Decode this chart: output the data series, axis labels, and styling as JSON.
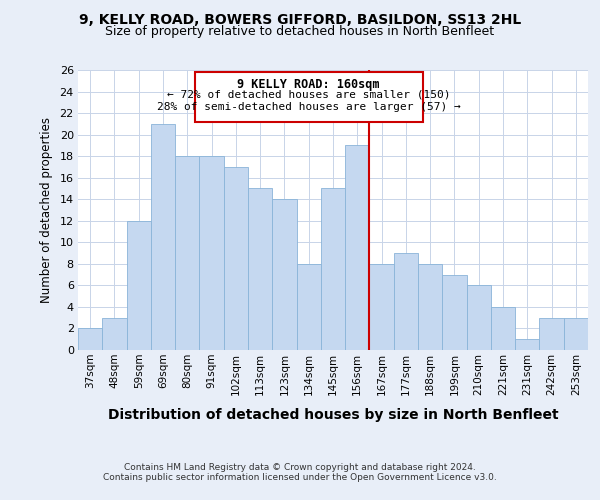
{
  "title1": "9, KELLY ROAD, BOWERS GIFFORD, BASILDON, SS13 2HL",
  "title2": "Size of property relative to detached houses in North Benfleet",
  "xlabel": "Distribution of detached houses by size in North Benfleet",
  "ylabel": "Number of detached properties",
  "categories": [
    "37sqm",
    "48sqm",
    "59sqm",
    "69sqm",
    "80sqm",
    "91sqm",
    "102sqm",
    "113sqm",
    "123sqm",
    "134sqm",
    "145sqm",
    "156sqm",
    "167sqm",
    "177sqm",
    "188sqm",
    "199sqm",
    "210sqm",
    "221sqm",
    "231sqm",
    "242sqm",
    "253sqm"
  ],
  "values": [
    2,
    3,
    12,
    21,
    18,
    18,
    17,
    15,
    14,
    8,
    15,
    19,
    8,
    9,
    8,
    7,
    6,
    4,
    1,
    3,
    3
  ],
  "bar_color": "#c5d8f0",
  "bar_edge_color": "#8ab4d8",
  "vline_x_index": 11,
  "vline_color": "#cc0000",
  "annotation_title": "9 KELLY ROAD: 160sqm",
  "annotation_line1": "← 72% of detached houses are smaller (150)",
  "annotation_line2": "28% of semi-detached houses are larger (57) →",
  "annotation_box_color": "#cc0000",
  "annotation_bg": "#ffffff",
  "ylim": [
    0,
    26
  ],
  "yticks": [
    0,
    2,
    4,
    6,
    8,
    10,
    12,
    14,
    16,
    18,
    20,
    22,
    24,
    26
  ],
  "grid_color": "#c8d4e8",
  "footer1": "Contains HM Land Registry data © Crown copyright and database right 2024.",
  "footer2": "Contains public sector information licensed under the Open Government Licence v3.0.",
  "bg_color": "#e8eef8",
  "plot_bg_color": "#ffffff"
}
